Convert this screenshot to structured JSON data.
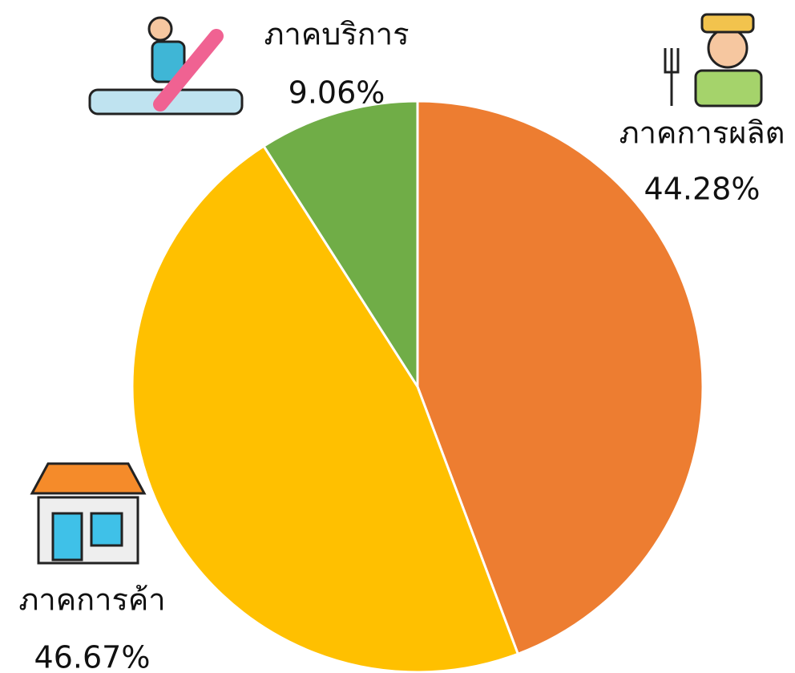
{
  "chart_data": {
    "type": "pie",
    "categories": [
      "ภาคการผลิต",
      "ภาคการค้า",
      "ภาคบริการ"
    ],
    "values": [
      44.28,
      46.67,
      9.06
    ],
    "value_labels": [
      "44.28%",
      "46.67%",
      "9.06%"
    ],
    "colors": [
      "#ed7d31",
      "#ffc000",
      "#70ad47"
    ]
  }
}
